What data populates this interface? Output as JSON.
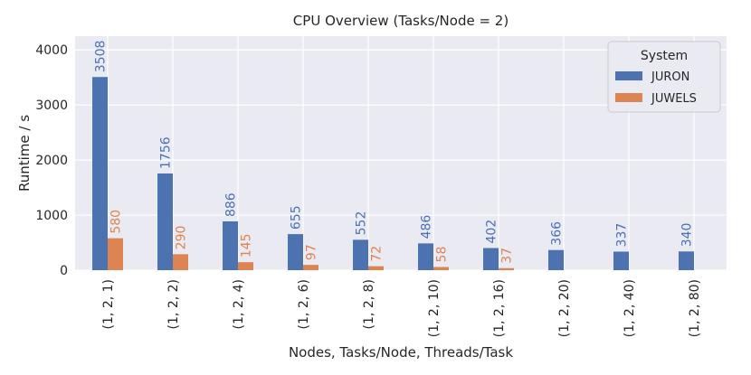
{
  "chart_data": {
    "type": "bar",
    "title": "CPU Overview (Tasks/Node = 2)",
    "xlabel": "Nodes, Tasks/Node, Threads/Task",
    "ylabel": "Runtime / s",
    "ylim": [
      0,
      4250
    ],
    "yticks": [
      0,
      1000,
      2000,
      3000,
      4000
    ],
    "grid": true,
    "legend": {
      "title": "System",
      "position": "top-right"
    },
    "categories": [
      "(1, 2, 1)",
      "(1, 2, 2)",
      "(1, 2, 4)",
      "(1, 2, 6)",
      "(1, 2, 8)",
      "(1, 2, 10)",
      "(1, 2, 16)",
      "(1, 2, 20)",
      "(1, 2, 40)",
      "(1, 2, 80)"
    ],
    "series": [
      {
        "name": "JURON",
        "color": "#4c72b0",
        "values": [
          3508,
          1756,
          886,
          655,
          552,
          486,
          402,
          366,
          337,
          340
        ]
      },
      {
        "name": "JUWELS",
        "color": "#dd8452",
        "values": [
          580,
          290,
          145,
          97,
          72,
          58,
          37,
          null,
          null,
          null
        ]
      }
    ]
  }
}
